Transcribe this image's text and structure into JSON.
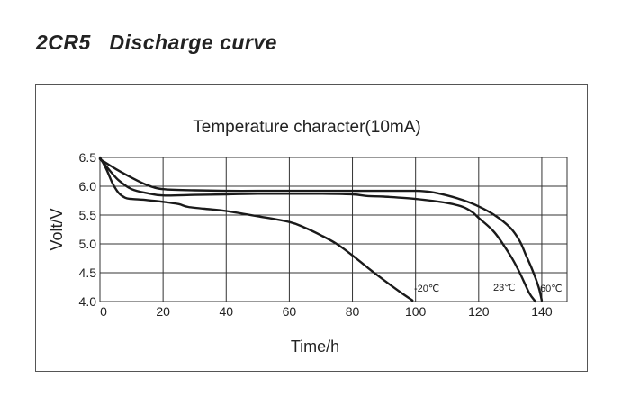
{
  "page_title": "2CR5   Discharge curve",
  "chart_data": {
    "type": "line",
    "title": "Temperature character(10mA)",
    "xlabel": "Time/h",
    "ylabel": "Volt/V",
    "xlim": [
      0,
      148
    ],
    "ylim": [
      4.0,
      6.5
    ],
    "xticks": [
      0,
      20,
      40,
      60,
      80,
      100,
      120,
      140
    ],
    "xtick_labels": [
      "0",
      "20",
      "40",
      "60",
      "80",
      "100",
      "120",
      "140"
    ],
    "yticks": [
      4.0,
      4.5,
      5.0,
      5.5,
      6.0,
      6.5
    ],
    "ytick_labels": [
      "4.0",
      "4.5",
      "5.0",
      "5.5",
      "6.0",
      "6.5"
    ],
    "x_gridlines": [
      0,
      20,
      40,
      60,
      80,
      100,
      120,
      140,
      148
    ],
    "grid": true,
    "series": [
      {
        "name": "-20℃",
        "label": "-20℃",
        "x": [
          0,
          2,
          4,
          6,
          8,
          10,
          15,
          20,
          25,
          28,
          35,
          40,
          50,
          60,
          65,
          70,
          75,
          80,
          85,
          90,
          95,
          99
        ],
        "y": [
          6.5,
          6.3,
          6.05,
          5.88,
          5.8,
          5.78,
          5.76,
          5.73,
          5.69,
          5.64,
          5.6,
          5.57,
          5.48,
          5.38,
          5.28,
          5.15,
          5.0,
          4.8,
          4.58,
          4.37,
          4.17,
          4.02
        ]
      },
      {
        "name": "23℃",
        "label": "23℃",
        "x": [
          0,
          3,
          6,
          10,
          15,
          20,
          30,
          40,
          50,
          60,
          70,
          80,
          85,
          90,
          100,
          110,
          115,
          118,
          120,
          125,
          130,
          133,
          136,
          138
        ],
        "y": [
          6.48,
          6.28,
          6.1,
          5.95,
          5.88,
          5.84,
          5.85,
          5.86,
          5.87,
          5.87,
          5.87,
          5.86,
          5.83,
          5.82,
          5.78,
          5.71,
          5.64,
          5.55,
          5.45,
          5.2,
          4.8,
          4.5,
          4.15,
          4.0
        ]
      },
      {
        "name": "60℃",
        "label": "60℃",
        "x": [
          0,
          5,
          10,
          15,
          20,
          30,
          40,
          50,
          60,
          70,
          80,
          90,
          100,
          105,
          110,
          115,
          120,
          125,
          130,
          133,
          135,
          137,
          139,
          140
        ],
        "y": [
          6.47,
          6.3,
          6.15,
          6.02,
          5.95,
          5.93,
          5.92,
          5.92,
          5.92,
          5.92,
          5.92,
          5.92,
          5.92,
          5.9,
          5.84,
          5.76,
          5.65,
          5.5,
          5.28,
          5.05,
          4.8,
          4.55,
          4.25,
          4.02
        ]
      }
    ]
  }
}
